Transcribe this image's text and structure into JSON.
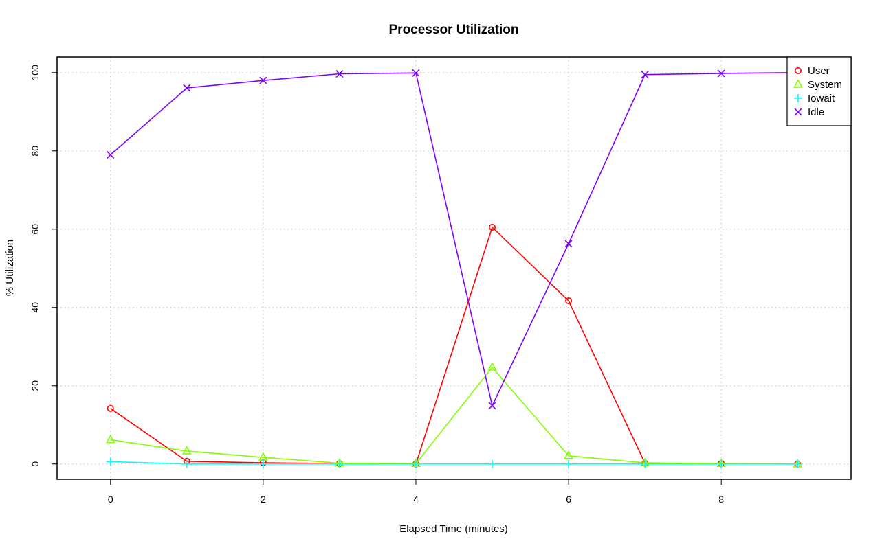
{
  "chart_data": {
    "type": "line",
    "title": "Processor Utilization",
    "xlabel": "Elapsed Time (minutes)",
    "ylabel": "% Utilization",
    "xlim": [
      -0.7,
      9.7
    ],
    "ylim": [
      -3.9,
      104
    ],
    "x_ticks": [
      0,
      2,
      4,
      6,
      8
    ],
    "y_ticks": [
      0,
      20,
      40,
      60,
      80,
      100
    ],
    "grid": true,
    "legend_position": "top-right",
    "x": [
      0,
      1,
      2,
      3,
      4,
      5,
      6,
      7,
      8,
      9
    ],
    "series": [
      {
        "name": "User",
        "color": "#ff0000",
        "marker": "circle",
        "values": [
          14.2,
          0.7,
          0.3,
          0.1,
          0.0,
          60.5,
          41.7,
          0.2,
          0.1,
          0.0
        ]
      },
      {
        "name": "System",
        "color": "#80ff00",
        "marker": "triangle",
        "values": [
          6.2,
          3.3,
          1.7,
          0.2,
          0.1,
          24.7,
          2.1,
          0.3,
          0.1,
          0.0
        ]
      },
      {
        "name": "Iowait",
        "color": "#00ffff",
        "marker": "plus",
        "values": [
          0.6,
          0.0,
          0.0,
          0.0,
          0.0,
          0.0,
          0.0,
          0.0,
          0.0,
          0.0
        ]
      },
      {
        "name": "Idle",
        "color": "#8000ff",
        "marker": "x",
        "values": [
          79.0,
          96.1,
          98.0,
          99.7,
          99.9,
          14.9,
          56.3,
          99.5,
          99.8,
          100.0
        ]
      }
    ]
  }
}
